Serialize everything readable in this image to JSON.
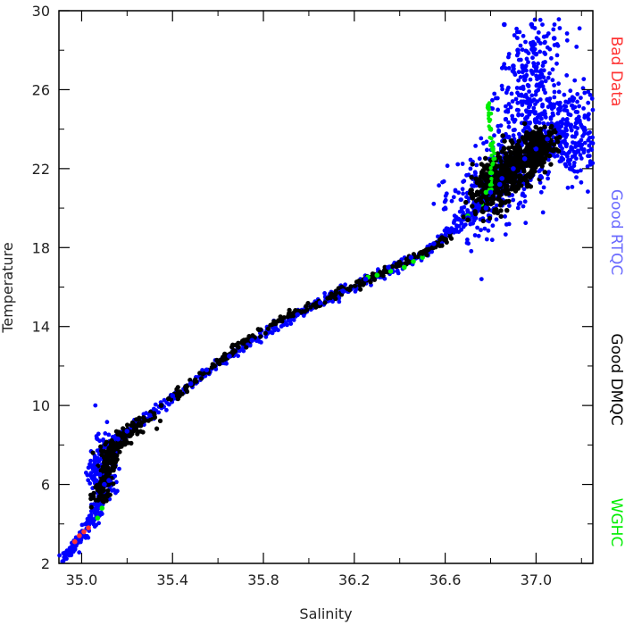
{
  "chart_data": {
    "type": "scatter",
    "title": "",
    "xlabel": "Salinity",
    "ylabel": "Temperature",
    "xlim": [
      34.9,
      37.25
    ],
    "ylim": [
      2,
      30
    ],
    "x_ticks": [
      "35.0",
      "35.4",
      "35.8",
      "36.2",
      "36.6",
      "37.0"
    ],
    "y_ticks": [
      "2",
      "6",
      "10",
      "14",
      "18",
      "22",
      "26",
      "30"
    ],
    "grid": false,
    "legend_position": "right, vertical text",
    "legend": [
      {
        "label": "Bad Data",
        "color": "#ff3333"
      },
      {
        "label": "Good RTQC",
        "color": "#6a6aff"
      },
      {
        "label": "Good DMQC",
        "color": "#000000"
      },
      {
        "label": "WGHC",
        "color": "#00ee00"
      }
    ],
    "series": [
      {
        "name": "WGHC",
        "color": "#00ee00",
        "points": [
          [
            35.07,
            4.3
          ],
          [
            35.09,
            4.8
          ],
          [
            36.26,
            16.5
          ],
          [
            36.3,
            16.6
          ],
          [
            36.36,
            16.8
          ],
          [
            36.42,
            17.0
          ],
          [
            36.46,
            17.3
          ],
          [
            36.5,
            17.5
          ],
          [
            36.7,
            19.6
          ],
          [
            36.76,
            20.2
          ],
          [
            36.78,
            20.8
          ],
          [
            36.8,
            21.8
          ],
          [
            36.81,
            23.0
          ],
          [
            36.8,
            24.0
          ],
          [
            36.79,
            25.2
          ]
        ]
      },
      {
        "name": "Good RTQC",
        "color": "#0000ff",
        "points": [
          [
            35.06,
            6.8
          ],
          [
            35.08,
            6.5
          ],
          [
            35.1,
            6.0
          ],
          [
            35.12,
            6.2
          ],
          [
            35.16,
            8.3
          ],
          [
            35.2,
            8.7
          ],
          [
            35.3,
            9.5
          ],
          [
            35.4,
            10.5
          ],
          [
            35.48,
            11.1
          ],
          [
            35.55,
            11.8
          ],
          [
            35.65,
            12.5
          ],
          [
            35.75,
            13.3
          ],
          [
            35.85,
            13.9
          ],
          [
            35.95,
            14.6
          ],
          [
            36.05,
            15.2
          ],
          [
            36.15,
            15.8
          ],
          [
            36.25,
            16.4
          ],
          [
            36.35,
            17.0
          ],
          [
            36.45,
            17.5
          ],
          [
            36.55,
            18.2
          ],
          [
            36.62,
            18.8
          ],
          [
            36.7,
            19.5
          ],
          [
            36.75,
            20.2
          ],
          [
            36.8,
            20.8
          ],
          [
            36.85,
            21.5
          ],
          [
            36.9,
            22.0
          ],
          [
            36.95,
            22.5
          ],
          [
            37.0,
            23.0
          ],
          [
            37.05,
            23.5
          ],
          [
            37.1,
            24.0
          ],
          [
            37.2,
            23.2
          ],
          [
            37.18,
            24.5
          ],
          [
            37.05,
            25.5
          ],
          [
            36.95,
            26.5
          ],
          [
            36.9,
            27.2
          ],
          [
            37.0,
            27.8
          ],
          [
            37.08,
            28.6
          ],
          [
            36.98,
            29.3
          ],
          [
            36.86,
            29.3
          ],
          [
            36.92,
            28.0
          ],
          [
            37.12,
            22.8
          ],
          [
            37.15,
            22.0
          ],
          [
            36.88,
            23.6
          ],
          [
            36.96,
            24.6
          ],
          [
            37.1,
            25.0
          ],
          [
            36.84,
            21.2
          ],
          [
            36.78,
            20.0
          ],
          [
            37.02,
            21.6
          ]
        ]
      },
      {
        "name": "Good DMQC",
        "color": "#000000",
        "points": [
          [
            35.08,
            5.4
          ],
          [
            35.09,
            5.8
          ],
          [
            35.1,
            6.3
          ],
          [
            35.11,
            7.0
          ],
          [
            35.12,
            7.6
          ],
          [
            35.14,
            8.0
          ],
          [
            35.22,
            9.0
          ],
          [
            35.35,
            10.0
          ],
          [
            35.5,
            11.3
          ],
          [
            35.62,
            12.3
          ],
          [
            35.72,
            13.3
          ],
          [
            35.85,
            14.2
          ],
          [
            36.02,
            15.1
          ],
          [
            36.12,
            15.7
          ],
          [
            36.22,
            16.3
          ],
          [
            36.4,
            17.1
          ],
          [
            36.5,
            17.7
          ],
          [
            36.6,
            18.4
          ],
          [
            36.7,
            19.4
          ],
          [
            36.76,
            20.3
          ],
          [
            36.82,
            21.3
          ],
          [
            36.86,
            22.0
          ],
          [
            36.9,
            22.5
          ],
          [
            36.96,
            23.0
          ],
          [
            37.02,
            23.5
          ],
          [
            37.06,
            23.7
          ],
          [
            36.98,
            22.8
          ],
          [
            36.92,
            23.2
          ],
          [
            37.04,
            22.9
          ]
        ]
      },
      {
        "name": "Bad Data",
        "color": "#ff3333",
        "points": [
          [
            34.97,
            3.1
          ],
          [
            34.99,
            3.4
          ],
          [
            35.01,
            3.6
          ],
          [
            35.03,
            3.8
          ]
        ]
      }
    ]
  }
}
